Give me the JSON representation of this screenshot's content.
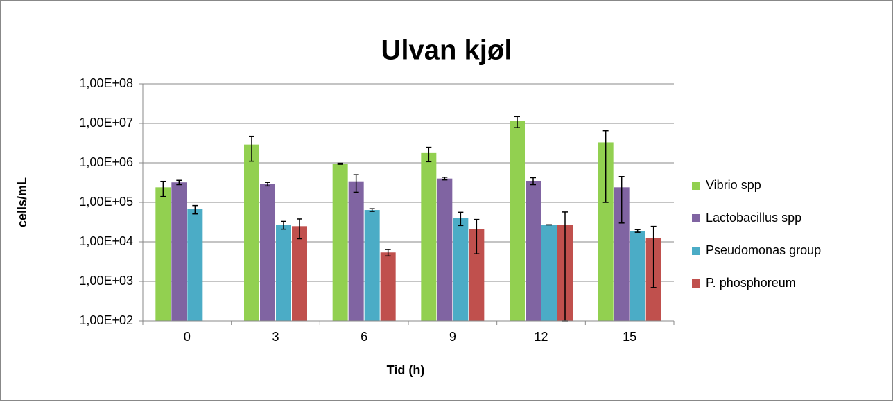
{
  "chart_data": {
    "type": "bar",
    "title": "Ulvan kjøl",
    "x_label": "Tid (h)",
    "y_label": "cells/mL",
    "log_scale": true,
    "grid": true,
    "legend": "right",
    "categories": [
      "0",
      "3",
      "6",
      "9",
      "12",
      "15"
    ],
    "ylim": [
      100,
      100000000
    ],
    "yticks": [
      {
        "value": 100,
        "label": "1,00E+02"
      },
      {
        "value": 1000,
        "label": "1,00E+03"
      },
      {
        "value": 10000,
        "label": "1,00E+04"
      },
      {
        "value": 100000,
        "label": "1,00E+05"
      },
      {
        "value": 1000000,
        "label": "1,00E+06"
      },
      {
        "value": 10000000,
        "label": "1,00E+07"
      },
      {
        "value": 100000000,
        "label": "1,00E+08"
      }
    ],
    "series": [
      {
        "name": "Vibrio spp",
        "color": "#92d050",
        "values": [
          240000,
          2900000,
          950000,
          1770000,
          11300000,
          3300000
        ],
        "errors": [
          100000,
          1800000,
          30000,
          700000,
          3500000,
          3200000
        ]
      },
      {
        "name": "Lactobacillus spp",
        "color": "#8064a2",
        "values": [
          320000,
          290000,
          340000,
          400000,
          350000,
          240000
        ],
        "errors": [
          40000,
          30000,
          160000,
          30000,
          70000,
          210000
        ]
      },
      {
        "name": "Pseudomonas group",
        "color": "#4bacc6",
        "values": [
          67000,
          27000,
          64000,
          41000,
          27000,
          19000
        ],
        "errors": [
          16000,
          6000,
          5000,
          15000,
          0,
          1500
        ]
      },
      {
        "name": "P. phosphoreum",
        "color": "#c0504d",
        "values": [
          null,
          25000,
          5400,
          21000,
          27000,
          12700
        ],
        "errors": [
          null,
          13000,
          1000,
          16000,
          30000,
          12000
        ]
      }
    ]
  }
}
